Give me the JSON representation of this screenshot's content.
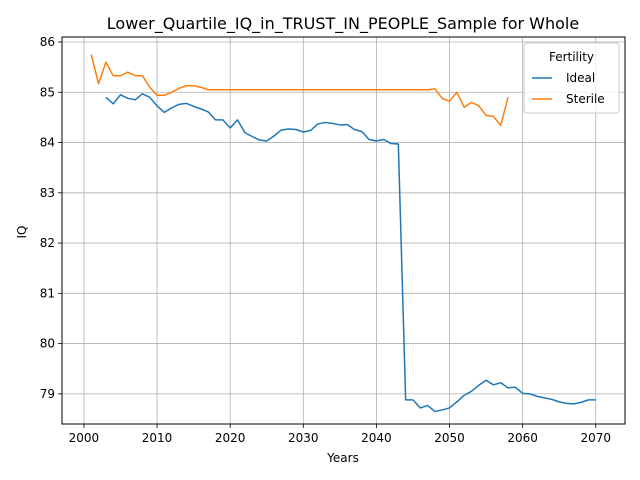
{
  "chart_data": {
    "type": "line",
    "title": "Lower_Quartile_IQ_in_TRUST_IN_PEOPLE_Sample for Whole",
    "xlabel": "Years",
    "ylabel": "IQ",
    "xlim": [
      1997,
      2074
    ],
    "ylim": [
      78.4,
      86.1
    ],
    "xticks": [
      2000,
      2010,
      2020,
      2030,
      2040,
      2050,
      2060,
      2070
    ],
    "yticks": [
      79,
      80,
      81,
      82,
      83,
      84,
      85,
      86
    ],
    "grid": true,
    "legend": {
      "title": "Fertility",
      "placement": "top-right"
    },
    "series": [
      {
        "name": "Ideal",
        "color": "#1f77b4",
        "x": [
          2003,
          2004,
          2005,
          2006,
          2007,
          2008,
          2009,
          2010,
          2011,
          2012,
          2013,
          2014,
          2015,
          2016,
          2017,
          2018,
          2019,
          2020,
          2021,
          2022,
          2023,
          2024,
          2025,
          2026,
          2027,
          2028,
          2029,
          2030,
          2031,
          2032,
          2033,
          2034,
          2035,
          2036,
          2037,
          2038,
          2039,
          2040,
          2041,
          2042,
          2043,
          2044,
          2045,
          2046,
          2047,
          2048,
          2049,
          2050,
          2051,
          2052,
          2053,
          2054,
          2055,
          2056,
          2057,
          2058,
          2059,
          2060,
          2061,
          2062,
          2063,
          2064,
          2065,
          2066,
          2067,
          2068,
          2069,
          2070
        ],
        "y": [
          84.9,
          84.77,
          84.95,
          84.88,
          84.85,
          84.97,
          84.9,
          84.73,
          84.6,
          84.69,
          84.76,
          84.78,
          84.72,
          84.67,
          84.61,
          84.45,
          84.45,
          84.29,
          84.45,
          84.2,
          84.12,
          84.05,
          84.03,
          84.13,
          84.25,
          84.27,
          84.26,
          84.21,
          84.24,
          84.37,
          84.4,
          84.38,
          84.35,
          84.36,
          84.26,
          84.22,
          84.06,
          84.03,
          84.06,
          83.98,
          83.97,
          78.88,
          78.88,
          78.72,
          78.77,
          78.65,
          78.68,
          78.72,
          78.84,
          78.97,
          79.05,
          79.17,
          79.27,
          79.18,
          79.22,
          79.12,
          79.13,
          79.01,
          79.0,
          78.95,
          78.92,
          78.89,
          78.84,
          78.81,
          78.8,
          78.83,
          78.88,
          78.88
        ]
      },
      {
        "name": "Sterile",
        "color": "#ff7f0e",
        "x": [
          2001,
          2002,
          2003,
          2004,
          2005,
          2006,
          2007,
          2008,
          2009,
          2010,
          2011,
          2012,
          2013,
          2014,
          2015,
          2016,
          2017,
          2018,
          2019,
          2020,
          2021,
          2022,
          2023,
          2024,
          2025,
          2026,
          2027,
          2028,
          2029,
          2030,
          2031,
          2032,
          2033,
          2034,
          2035,
          2036,
          2037,
          2038,
          2039,
          2040,
          2041,
          2042,
          2043,
          2044,
          2045,
          2046,
          2047,
          2048,
          2049,
          2050,
          2051,
          2052,
          2053,
          2054,
          2055,
          2056,
          2057,
          2058
        ],
        "y": [
          85.75,
          85.17,
          85.6,
          85.33,
          85.33,
          85.4,
          85.33,
          85.33,
          85.1,
          84.94,
          84.94,
          85.0,
          85.08,
          85.13,
          85.13,
          85.1,
          85.05,
          85.05,
          85.05,
          85.05,
          85.05,
          85.05,
          85.05,
          85.05,
          85.05,
          85.05,
          85.05,
          85.05,
          85.05,
          85.05,
          85.05,
          85.05,
          85.05,
          85.05,
          85.05,
          85.05,
          85.05,
          85.05,
          85.05,
          85.05,
          85.05,
          85.05,
          85.05,
          85.05,
          85.05,
          85.05,
          85.05,
          85.07,
          84.88,
          84.82,
          85.0,
          84.7,
          84.8,
          84.73,
          84.54,
          84.52,
          84.34,
          84.9
        ]
      }
    ]
  }
}
